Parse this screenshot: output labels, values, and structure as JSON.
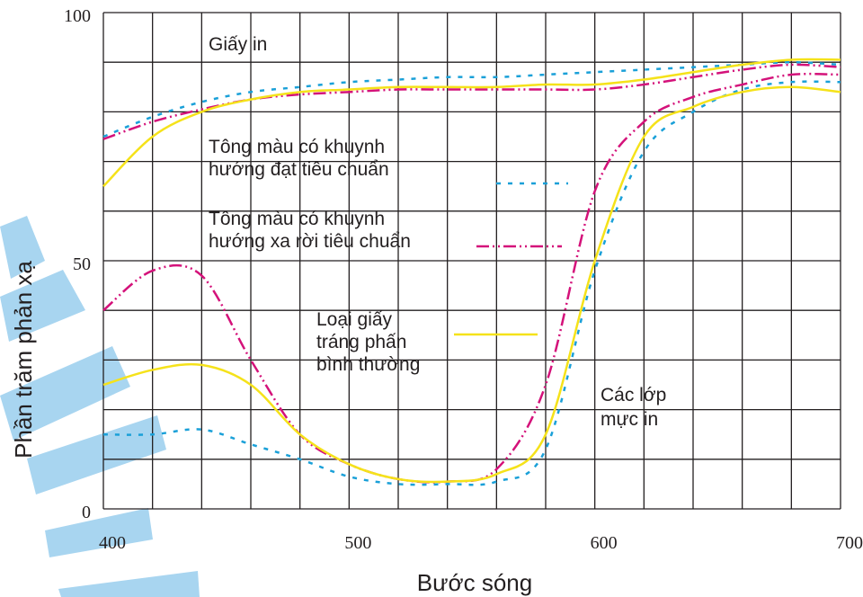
{
  "chart_data": {
    "type": "line",
    "y_label": "Phần trăm phản xạ",
    "x_label": "Bước sóng",
    "x": [
      400,
      420,
      440,
      460,
      480,
      500,
      520,
      540,
      560,
      580,
      600,
      620,
      640,
      660,
      680,
      700
    ],
    "xlim": [
      400,
      700
    ],
    "ylim": [
      0,
      100
    ],
    "xticks": [
      400,
      500,
      600,
      700
    ],
    "yticks": [
      0,
      50,
      100
    ],
    "xgrid": [
      400,
      420,
      440,
      460,
      480,
      500,
      520,
      540,
      560,
      580,
      600,
      620,
      640,
      660,
      680,
      700
    ],
    "ygrid": [
      0,
      10,
      20,
      30,
      40,
      50,
      60,
      70,
      80,
      90,
      100
    ],
    "grid": true,
    "annotations": [
      [
        "Giấy in"
      ],
      [
        "Các lớp",
        "mực in"
      ]
    ],
    "series": [
      {
        "name": [
          "Tông màu có khuynh",
          "hướng đạt tiêu chuẩn"
        ],
        "color": "#1aa0d8",
        "dash": "5 8",
        "values": [
          75,
          79,
          82,
          84,
          85,
          86,
          86.5,
          87,
          87,
          87.5,
          88,
          88.5,
          89,
          89.5,
          90,
          89.5
        ],
        "ink_values": [
          15,
          15,
          16,
          13,
          10,
          6.5,
          5,
          5,
          5.5,
          12,
          48,
          72,
          80,
          84.5,
          86,
          86
        ]
      },
      {
        "name": [
          "Tông màu có khuynh",
          "hướng xa rời tiêu chuẩn"
        ],
        "color": "#d4127a",
        "dash": "14 4 2 4 2 4",
        "values": [
          74.5,
          78,
          80.5,
          82.5,
          83.5,
          84,
          84.5,
          84.5,
          84.5,
          84.5,
          84.5,
          85.5,
          87,
          88.5,
          89.5,
          89
        ],
        "ink_values": [
          40,
          48,
          47,
          30,
          15,
          9,
          6,
          5.5,
          8,
          25,
          64,
          78,
          83,
          85.5,
          87.5,
          87.5
        ]
      },
      {
        "name": [
          "Loại giấy",
          "tráng phấn",
          "bình thường"
        ],
        "color": "#f5e21a",
        "dash": "none",
        "values": [
          65,
          75,
          80,
          82.5,
          84,
          84.5,
          85,
          85,
          85,
          85.5,
          85.5,
          86.5,
          88,
          89.5,
          90.5,
          90.5
        ],
        "ink_values": [
          25,
          28,
          29,
          25,
          15,
          9,
          6,
          5.5,
          7,
          15,
          50,
          75,
          81,
          84,
          85,
          84
        ]
      }
    ]
  }
}
